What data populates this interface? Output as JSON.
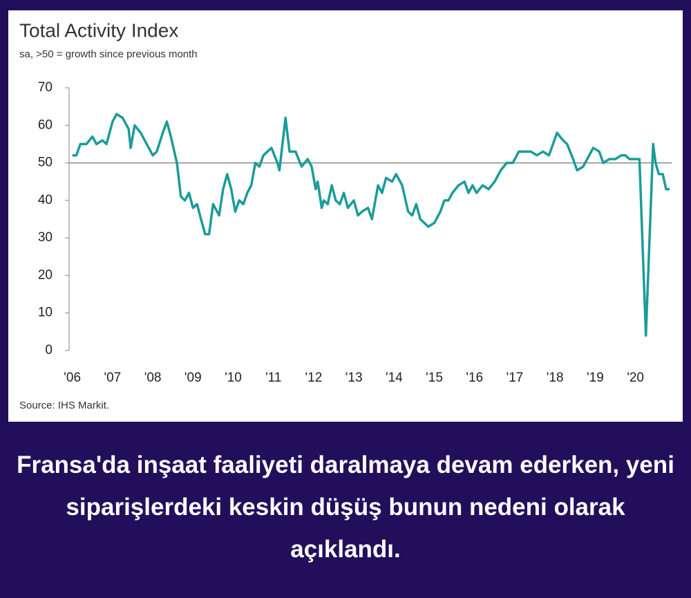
{
  "chart_data": {
    "type": "line",
    "title": "Total Activity Index",
    "subtitle": "sa, >50 = growth since previous month",
    "source": "Source: IHS Markit.",
    "x": [
      2006.0,
      2006.1,
      2006.2,
      2006.35,
      2006.5,
      2006.6,
      2006.75,
      2006.85,
      2007.0,
      2007.1,
      2007.25,
      2007.4,
      2007.45,
      2007.55,
      2007.7,
      2007.85,
      2008.0,
      2008.1,
      2008.25,
      2008.35,
      2008.45,
      2008.6,
      2008.7,
      2008.8,
      2008.9,
      2009.0,
      2009.1,
      2009.2,
      2009.3,
      2009.4,
      2009.5,
      2009.55,
      2009.65,
      2009.75,
      2009.85,
      2009.95,
      2010.05,
      2010.15,
      2010.25,
      2010.35,
      2010.45,
      2010.55,
      2010.65,
      2010.75,
      2010.85,
      2010.95,
      2011.1,
      2011.15,
      2011.3,
      2011.4,
      2011.55,
      2011.7,
      2011.85,
      2011.95,
      2012.05,
      2012.1,
      2012.2,
      2012.25,
      2012.35,
      2012.45,
      2012.55,
      2012.65,
      2012.75,
      2012.85,
      2013.0,
      2013.1,
      2013.2,
      2013.35,
      2013.45,
      2013.6,
      2013.7,
      2013.8,
      2013.95,
      2014.05,
      2014.2,
      2014.35,
      2014.45,
      2014.55,
      2014.65,
      2014.75,
      2014.85,
      2015.0,
      2015.15,
      2015.25,
      2015.35,
      2015.45,
      2015.6,
      2015.75,
      2015.85,
      2015.95,
      2016.05,
      2016.2,
      2016.35,
      2016.5,
      2016.65,
      2016.8,
      2016.95,
      2017.1,
      2017.25,
      2017.4,
      2017.55,
      2017.7,
      2017.85,
      2017.95,
      2018.05,
      2018.2,
      2018.3,
      2018.45,
      2018.55,
      2018.7,
      2018.85,
      2018.95,
      2019.1,
      2019.2,
      2019.35,
      2019.5,
      2019.65,
      2019.75,
      2019.85,
      2019.95,
      2020.1,
      2020.26,
      2020.44,
      2020.5,
      2020.58,
      2020.68,
      2020.76,
      2020.85
    ],
    "series": [
      {
        "color": "#1b9c98",
        "values": [
          52,
          52,
          55,
          55,
          57,
          55,
          56,
          55,
          61,
          63,
          62,
          59,
          54,
          60,
          58,
          55,
          52,
          53,
          58,
          61,
          57,
          50,
          41,
          40,
          42,
          38,
          39,
          35,
          31,
          31,
          39,
          38,
          36,
          43,
          47,
          43,
          37,
          40,
          39,
          42,
          44,
          50,
          49,
          52,
          53,
          54,
          50,
          48,
          62,
          53,
          53,
          49,
          51,
          49,
          43,
          45,
          38,
          40,
          39,
          44,
          40,
          39,
          42,
          38,
          40,
          36,
          37,
          38,
          35,
          44,
          42,
          46,
          45,
          47,
          44,
          37,
          36,
          39,
          35,
          34,
          33,
          34,
          37,
          40,
          40,
          42,
          44,
          45,
          42,
          44,
          42,
          44,
          43,
          45,
          48,
          50,
          50,
          53,
          53,
          53,
          52,
          53,
          52,
          55,
          58,
          56,
          55,
          51,
          48,
          49,
          52,
          54,
          53,
          50,
          51,
          51,
          52,
          52,
          51,
          51,
          51,
          4,
          55,
          50,
          47,
          47,
          43,
          43
        ]
      }
    ],
    "xlim": [
      2005.92,
      2020.9
    ],
    "xticks": [
      {
        "value": 2006,
        "label": "'06"
      },
      {
        "value": 2007,
        "label": "'07"
      },
      {
        "value": 2008,
        "label": "'08"
      },
      {
        "value": 2009,
        "label": "'09"
      },
      {
        "value": 2010,
        "label": "'10"
      },
      {
        "value": 2011,
        "label": "'11"
      },
      {
        "value": 2012,
        "label": "'12"
      },
      {
        "value": 2013,
        "label": "'13"
      },
      {
        "value": 2014,
        "label": "'14"
      },
      {
        "value": 2015,
        "label": "'15"
      },
      {
        "value": 2016,
        "label": "'16"
      },
      {
        "value": 2017,
        "label": "'17"
      },
      {
        "value": 2018,
        "label": "'18"
      },
      {
        "value": 2019,
        "label": "'19"
      },
      {
        "value": 2020,
        "label": "'20"
      }
    ],
    "ylim": [
      0,
      70
    ],
    "yticks": [
      0,
      10,
      20,
      30,
      40,
      50,
      60,
      70
    ],
    "reference_line": 50
  },
  "caption": "Fransa'da inşaat faaliyeti daralmaya devam ederken, yeni siparişlerdeki keskin düşüş bunun nedeni olarak açıklandı."
}
